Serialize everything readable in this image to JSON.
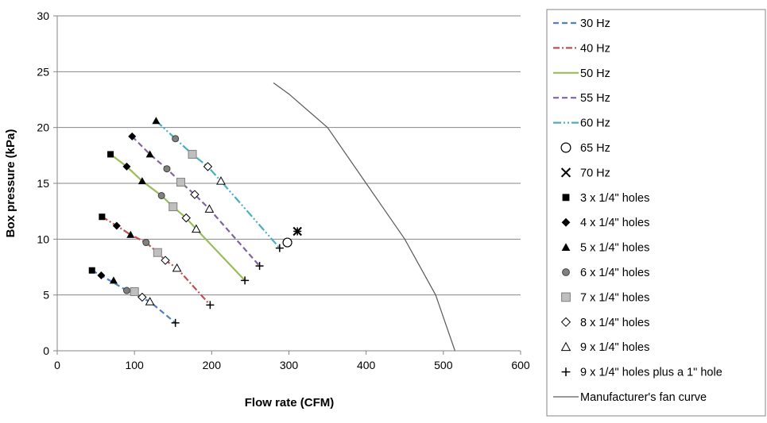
{
  "chart_data": {
    "type": "scatter",
    "title": "",
    "xlabel": "Flow rate (CFM)",
    "ylabel": "Box pressure (kPa)",
    "xlim": [
      0,
      600
    ],
    "ylim": [
      0,
      30
    ],
    "x_ticks": [
      "0",
      "100",
      "200",
      "300",
      "400",
      "500",
      "600"
    ],
    "y_ticks": [
      "0",
      "5",
      "10",
      "15",
      "20",
      "25",
      "30"
    ],
    "grid": "horizontal major gridlines",
    "legend_position": "right",
    "lines": [
      {
        "name": "30 Hz",
        "style": "dash",
        "color": "#4F81BD",
        "points": [
          [
            45,
            7.2
          ],
          [
            57,
            6.75
          ],
          [
            90,
            5.4
          ],
          [
            120,
            4.4
          ],
          [
            153,
            2.5
          ]
        ]
      },
      {
        "name": "40 Hz",
        "style": "dashdot",
        "color": "#C0504D",
        "points": [
          [
            58,
            12.0
          ],
          [
            77,
            11.2
          ],
          [
            95,
            10.4
          ],
          [
            115,
            9.7
          ],
          [
            130,
            8.8
          ],
          [
            140,
            8.1
          ],
          [
            155,
            7.4
          ],
          [
            198,
            4.1
          ]
        ]
      },
      {
        "name": "50 Hz",
        "style": "solid",
        "color": "#9BBB59",
        "points": [
          [
            69,
            17.6
          ],
          [
            90,
            16.5
          ],
          [
            110,
            15.2
          ],
          [
            135,
            13.9
          ],
          [
            150,
            12.9
          ],
          [
            167,
            11.9
          ],
          [
            180,
            10.9
          ],
          [
            243,
            6.3
          ]
        ]
      },
      {
        "name": "55 Hz",
        "style": "dash",
        "color": "#8064A2",
        "points": [
          [
            97,
            19.2
          ],
          [
            120,
            17.6
          ],
          [
            142,
            16.3
          ],
          [
            160,
            15.1
          ],
          [
            178,
            14.0
          ],
          [
            197,
            12.7
          ],
          [
            262,
            7.6
          ]
        ]
      },
      {
        "name": "60 Hz",
        "style": "dashdotdot",
        "color": "#4BACC6",
        "points": [
          [
            128,
            20.6
          ],
          [
            153,
            19.0
          ],
          [
            175,
            17.6
          ],
          [
            195,
            16.5
          ],
          [
            212,
            15.2
          ],
          [
            288,
            9.2
          ]
        ]
      },
      {
        "name": "65 Hz",
        "style": "point",
        "color": "#000000",
        "points": [
          [
            298,
            9.7
          ]
        ]
      },
      {
        "name": "70 Hz",
        "style": "point",
        "color": "#000000",
        "points": [
          [
            311,
            10.7
          ]
        ]
      }
    ],
    "marker_series": [
      {
        "name": "3 x 1/4\" holes",
        "marker": "square-filled",
        "points": [
          [
            45,
            7.2
          ],
          [
            58,
            12.0
          ],
          [
            69,
            17.6
          ]
        ]
      },
      {
        "name": "4 x 1/4\" holes",
        "marker": "diamond-filled",
        "points": [
          [
            57,
            6.75
          ],
          [
            77,
            11.2
          ],
          [
            90,
            16.5
          ],
          [
            97,
            19.2
          ]
        ]
      },
      {
        "name": "5 x 1/4\" holes",
        "marker": "triangle-filled",
        "points": [
          [
            73,
            6.3
          ],
          [
            95,
            10.4
          ],
          [
            110,
            15.2
          ],
          [
            120,
            17.6
          ],
          [
            128,
            20.6
          ]
        ]
      },
      {
        "name": "6 x 1/4\" holes",
        "marker": "circle-gray",
        "points": [
          [
            90,
            5.4
          ],
          [
            115,
            9.7
          ],
          [
            135,
            13.9
          ],
          [
            142,
            16.3
          ],
          [
            153,
            19.0
          ]
        ]
      },
      {
        "name": "7 x 1/4\" holes",
        "marker": "square-gray",
        "points": [
          [
            100,
            5.3
          ],
          [
            130,
            8.8
          ],
          [
            150,
            12.9
          ],
          [
            160,
            15.1
          ],
          [
            175,
            17.6
          ]
        ]
      },
      {
        "name": "8 x 1/4\" holes",
        "marker": "diamond-open",
        "points": [
          [
            110,
            4.8
          ],
          [
            140,
            8.1
          ],
          [
            167,
            11.9
          ],
          [
            178,
            14.0
          ],
          [
            195,
            16.5
          ]
        ]
      },
      {
        "name": "9 x 1/4\" holes",
        "marker": "triangle-open",
        "points": [
          [
            120,
            4.4
          ],
          [
            155,
            7.4
          ],
          [
            180,
            10.9
          ],
          [
            197,
            12.7
          ],
          [
            212,
            15.2
          ]
        ]
      },
      {
        "name": "9 x 1/4\" holes plus a 1\" hole",
        "marker": "plus",
        "points": [
          [
            153,
            2.5
          ],
          [
            198,
            4.1
          ],
          [
            243,
            6.3
          ],
          [
            262,
            7.6
          ],
          [
            288,
            9.2
          ],
          [
            298,
            9.7
          ],
          [
            311,
            10.7
          ]
        ]
      }
    ],
    "fan_curve": {
      "name": "Manufacturer's fan curve",
      "points": [
        [
          280,
          24.0
        ],
        [
          300,
          23.0
        ],
        [
          350,
          20.0
        ],
        [
          400,
          15.0
        ],
        [
          450,
          10.0
        ],
        [
          490,
          5.0
        ],
        [
          515,
          0
        ]
      ]
    },
    "legend": [
      {
        "label": "30 Hz",
        "kind": "line",
        "style": "dash",
        "color": "#4F81BD"
      },
      {
        "label": "40 Hz",
        "kind": "line",
        "style": "dashdot",
        "color": "#C0504D"
      },
      {
        "label": "50 Hz",
        "kind": "line",
        "style": "solid",
        "color": "#9BBB59"
      },
      {
        "label": "55 Hz",
        "kind": "line",
        "style": "dash",
        "color": "#8064A2"
      },
      {
        "label": "60 Hz",
        "kind": "line",
        "style": "dashdotdot",
        "color": "#4BACC6"
      },
      {
        "label": "65 Hz",
        "kind": "marker",
        "marker": "circle-open"
      },
      {
        "label": "70 Hz",
        "kind": "marker",
        "marker": "x"
      },
      {
        "label": "3 x 1/4\" holes",
        "kind": "marker",
        "marker": "square-filled"
      },
      {
        "label": "4 x 1/4\" holes",
        "kind": "marker",
        "marker": "diamond-filled"
      },
      {
        "label": "5 x 1/4\" holes",
        "kind": "marker",
        "marker": "triangle-filled"
      },
      {
        "label": "6 x 1/4\" holes",
        "kind": "marker",
        "marker": "circle-gray"
      },
      {
        "label": "7 x 1/4\" holes",
        "kind": "marker",
        "marker": "square-gray"
      },
      {
        "label": "8 x 1/4\" holes",
        "kind": "marker",
        "marker": "diamond-open"
      },
      {
        "label": "9 x 1/4\" holes",
        "kind": "marker",
        "marker": "triangle-open"
      },
      {
        "label": "9 x 1/4\" holes plus a 1\" hole",
        "kind": "marker",
        "marker": "plus"
      },
      {
        "label": "Manufacturer's fan curve",
        "kind": "line",
        "style": "solid",
        "color": "#595959"
      }
    ]
  }
}
